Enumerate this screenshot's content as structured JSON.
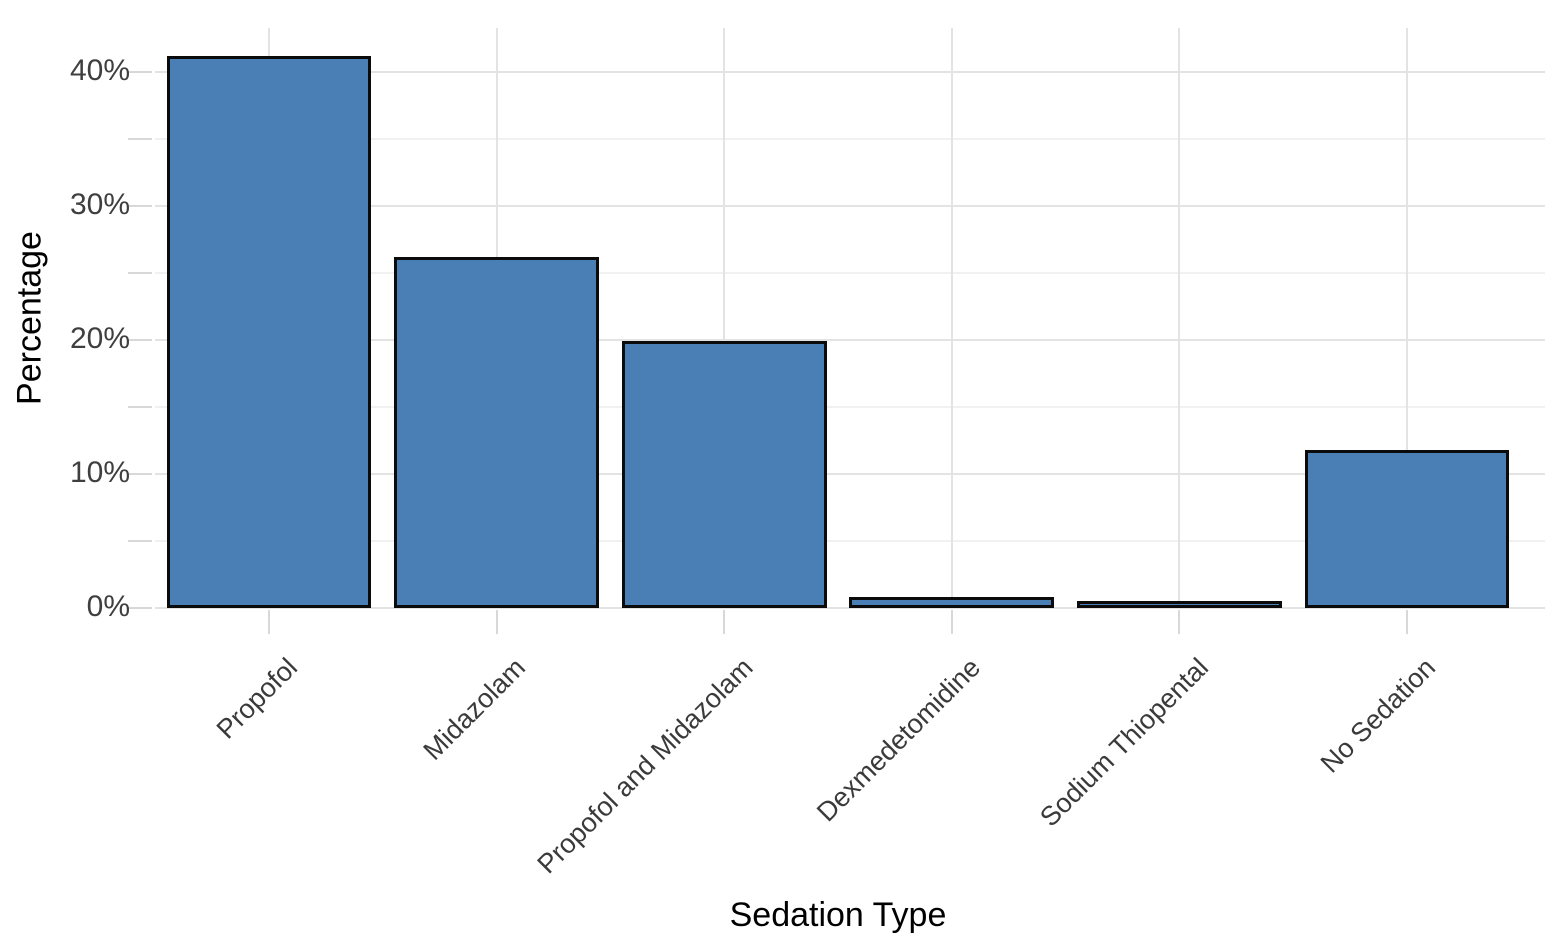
{
  "chart_data": {
    "type": "bar",
    "title": "",
    "xlabel": "Sedation Type",
    "ylabel": "Percentage",
    "categories": [
      "Propofol",
      "Midazolam",
      "Propofol and Midazolam",
      "Dexmedetomidine",
      "Sodium Thiopental",
      "No Sedation"
    ],
    "values": [
      41.2,
      26.2,
      19.9,
      0.8,
      0.5,
      11.8
    ],
    "unit": "%",
    "ylim": [
      0,
      43.3
    ],
    "y_major_ticks": [
      0,
      10,
      20,
      30,
      40
    ],
    "y_major_tick_labels": [
      "0%",
      "10%",
      "20%",
      "30%",
      "40%"
    ],
    "y_minor_ticks": [
      5,
      15,
      25,
      35
    ],
    "bar_width_fraction": 0.9,
    "x_label_rotation_deg": 45,
    "grid": "horizontal major+minor, vertical major at category centers",
    "legend": "none"
  },
  "colors": {
    "background": "#ffffff",
    "bar_fill": "#4A7FB5",
    "bar_stroke": "#0b0b0b",
    "grid_major": "#e3e3e3",
    "grid_minor": "#f1f1f1",
    "tick_mark": "#d8d8d8",
    "tick_label": "#3f3f3f",
    "category_label": "#3a3a3a",
    "axis_title": "#000000"
  }
}
